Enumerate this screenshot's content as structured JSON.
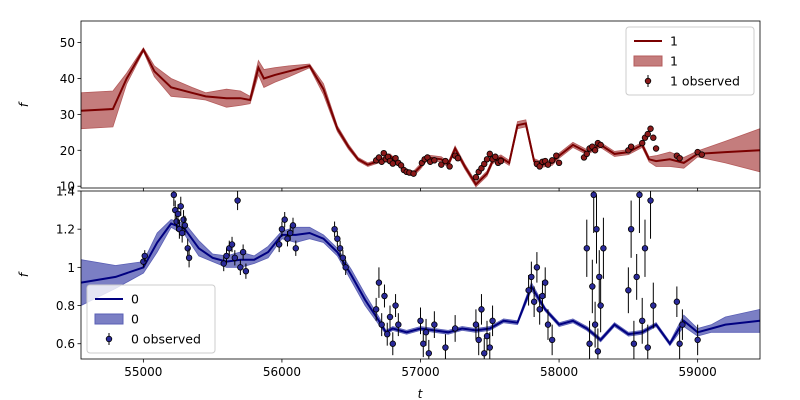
{
  "chart_data": [
    {
      "type": "line",
      "xlabel": "",
      "ylabel": "f",
      "xlim": [
        54550,
        59450
      ],
      "ylim": [
        9.5,
        56
      ],
      "yticks": [
        10,
        20,
        30,
        40,
        50
      ],
      "xticks": [
        55000,
        56000,
        57000,
        58000,
        59000
      ],
      "show_xticklabels": false,
      "colors": {
        "line": "#7a0000",
        "band": "#b55c5c",
        "point": "#8b1a1a"
      },
      "legend": {
        "position": "top-right",
        "entries": [
          {
            "kind": "line",
            "label": "1"
          },
          {
            "kind": "band",
            "label": "1"
          },
          {
            "kind": "errorbar",
            "label": "1 observed"
          }
        ]
      },
      "model": {
        "x": [
          54550,
          54780,
          54880,
          55000,
          55080,
          55200,
          55350,
          55450,
          55600,
          55700,
          55770,
          55830,
          55870,
          55950,
          56050,
          56200,
          56300,
          56400,
          56480,
          56550,
          56620,
          56700,
          56780,
          56850,
          56900,
          56950,
          57000,
          57050,
          57150,
          57200,
          57250,
          57320,
          57400,
          57480,
          57520,
          57580,
          57640,
          57700,
          57760,
          57820,
          57880,
          57950,
          58000,
          58100,
          58200,
          58300,
          58400,
          58500,
          58600,
          58650,
          58700,
          58800,
          58900,
          59000,
          59200,
          59450
        ],
        "y": [
          31.0,
          31.5,
          40.0,
          48.0,
          42.0,
          37.5,
          36.0,
          35.0,
          34.5,
          34.5,
          34.0,
          43.0,
          40.0,
          41.0,
          42.0,
          43.5,
          37.0,
          26.0,
          21.0,
          17.5,
          16.0,
          17.0,
          18.5,
          16.0,
          14.0,
          13.5,
          15.5,
          18.0,
          17.5,
          16.0,
          20.5,
          15.5,
          10.5,
          13.5,
          17.0,
          18.0,
          16.5,
          27.0,
          27.5,
          17.0,
          16.0,
          16.5,
          18.5,
          21.5,
          19.5,
          21.5,
          19.0,
          19.5,
          21.5,
          17.5,
          17.0,
          17.5,
          16.5,
          19.0,
          19.5,
          20.0
        ],
        "err": [
          5.0,
          5.0,
          1.5,
          0.5,
          1.5,
          2.5,
          1.5,
          1.0,
          2.5,
          2.0,
          1.0,
          2.0,
          2.5,
          2.0,
          1.5,
          0.5,
          1.5,
          0.8,
          0.7,
          0.5,
          0.5,
          0.5,
          0.5,
          0.5,
          0.7,
          0.7,
          0.7,
          0.7,
          0.7,
          0.7,
          0.7,
          0.7,
          0.7,
          0.7,
          0.7,
          0.7,
          0.7,
          1.0,
          1.0,
          0.7,
          0.7,
          0.7,
          0.7,
          0.7,
          0.7,
          0.7,
          0.7,
          0.7,
          0.7,
          0.7,
          1.5,
          2.0,
          1.5,
          0.8,
          3.0,
          6.0
        ]
      },
      "observed": [
        {
          "t": 56680,
          "f": 17.2,
          "e": 0.5
        },
        {
          "t": 56700,
          "f": 18.0,
          "e": 0.5
        },
        {
          "t": 56720,
          "f": 16.8,
          "e": 0.5
        },
        {
          "t": 56735,
          "f": 19.2,
          "e": 0.5
        },
        {
          "t": 56750,
          "f": 17.5,
          "e": 0.5
        },
        {
          "t": 56765,
          "f": 18.2,
          "e": 0.5
        },
        {
          "t": 56780,
          "f": 17.0,
          "e": 0.5
        },
        {
          "t": 56800,
          "f": 16.3,
          "e": 0.5
        },
        {
          "t": 56820,
          "f": 17.8,
          "e": 0.5
        },
        {
          "t": 56840,
          "f": 16.5,
          "e": 0.5
        },
        {
          "t": 56860,
          "f": 15.8,
          "e": 0.5
        },
        {
          "t": 56880,
          "f": 14.5,
          "e": 0.5
        },
        {
          "t": 56900,
          "f": 14.0,
          "e": 0.5
        },
        {
          "t": 56920,
          "f": 13.8,
          "e": 0.5
        },
        {
          "t": 56950,
          "f": 13.5,
          "e": 0.5
        },
        {
          "t": 57010,
          "f": 16.5,
          "e": 0.5
        },
        {
          "t": 57030,
          "f": 17.5,
          "e": 0.5
        },
        {
          "t": 57050,
          "f": 18.0,
          "e": 0.5
        },
        {
          "t": 57070,
          "f": 16.8,
          "e": 0.5
        },
        {
          "t": 57100,
          "f": 17.2,
          "e": 0.5
        },
        {
          "t": 57150,
          "f": 16.0,
          "e": 0.5
        },
        {
          "t": 57180,
          "f": 17.0,
          "e": 0.5
        },
        {
          "t": 57210,
          "f": 15.5,
          "e": 0.5
        },
        {
          "t": 57250,
          "f": 18.5,
          "e": 0.5
        },
        {
          "t": 57270,
          "f": 17.8,
          "e": 0.5
        },
        {
          "t": 57400,
          "f": 12.5,
          "e": 0.5
        },
        {
          "t": 57420,
          "f": 14.0,
          "e": 0.5
        },
        {
          "t": 57440,
          "f": 15.0,
          "e": 0.5
        },
        {
          "t": 57460,
          "f": 16.2,
          "e": 0.5
        },
        {
          "t": 57480,
          "f": 17.5,
          "e": 0.5
        },
        {
          "t": 57500,
          "f": 19.0,
          "e": 0.5
        },
        {
          "t": 57520,
          "f": 17.5,
          "e": 0.5
        },
        {
          "t": 57540,
          "f": 18.2,
          "e": 0.5
        },
        {
          "t": 57560,
          "f": 16.5,
          "e": 0.5
        },
        {
          "t": 57580,
          "f": 17.0,
          "e": 0.5
        },
        {
          "t": 57840,
          "f": 16.2,
          "e": 0.5
        },
        {
          "t": 57860,
          "f": 15.5,
          "e": 0.5
        },
        {
          "t": 57880,
          "f": 16.8,
          "e": 0.5
        },
        {
          "t": 57900,
          "f": 17.0,
          "e": 0.5
        },
        {
          "t": 57920,
          "f": 16.0,
          "e": 0.5
        },
        {
          "t": 57950,
          "f": 17.2,
          "e": 0.5
        },
        {
          "t": 57980,
          "f": 18.5,
          "e": 0.5
        },
        {
          "t": 58000,
          "f": 16.5,
          "e": 0.5
        },
        {
          "t": 58180,
          "f": 18.0,
          "e": 0.5
        },
        {
          "t": 58200,
          "f": 19.0,
          "e": 0.5
        },
        {
          "t": 58220,
          "f": 20.5,
          "e": 0.5
        },
        {
          "t": 58240,
          "f": 21.0,
          "e": 0.5
        },
        {
          "t": 58260,
          "f": 20.0,
          "e": 0.5
        },
        {
          "t": 58280,
          "f": 22.0,
          "e": 0.5
        },
        {
          "t": 58300,
          "f": 21.5,
          "e": 0.5
        },
        {
          "t": 58500,
          "f": 20.0,
          "e": 0.5
        },
        {
          "t": 58520,
          "f": 21.0,
          "e": 0.5
        },
        {
          "t": 58600,
          "f": 22.0,
          "e": 0.5
        },
        {
          "t": 58620,
          "f": 23.5,
          "e": 0.5
        },
        {
          "t": 58640,
          "f": 24.5,
          "e": 0.5
        },
        {
          "t": 58660,
          "f": 26.0,
          "e": 0.8
        },
        {
          "t": 58680,
          "f": 23.5,
          "e": 0.5
        },
        {
          "t": 58700,
          "f": 20.5,
          "e": 0.5
        },
        {
          "t": 58850,
          "f": 18.5,
          "e": 0.5
        },
        {
          "t": 58870,
          "f": 17.8,
          "e": 0.5
        },
        {
          "t": 59000,
          "f": 19.5,
          "e": 0.5
        },
        {
          "t": 59030,
          "f": 18.8,
          "e": 0.5
        }
      ]
    },
    {
      "type": "line",
      "xlabel": "t",
      "ylabel": "f",
      "xlim": [
        54550,
        59450
      ],
      "ylim": [
        0.52,
        1.4
      ],
      "yticks": [
        0.6,
        0.8,
        1.0,
        1.2,
        1.4
      ],
      "xticks": [
        55000,
        56000,
        57000,
        58000,
        59000
      ],
      "xticklabels": [
        "55000",
        "56000",
        "57000",
        "58000",
        "59000"
      ],
      "show_xticklabels": true,
      "colors": {
        "line": "#000080",
        "band": "#5a5fb5",
        "point": "#2a2a9a"
      },
      "legend": {
        "position": "bottom-left",
        "entries": [
          {
            "kind": "line",
            "label": "0"
          },
          {
            "kind": "band",
            "label": "0"
          },
          {
            "kind": "errorbar",
            "label": "0 observed"
          }
        ]
      },
      "model": {
        "x": [
          54550,
          54800,
          55000,
          55100,
          55200,
          55300,
          55400,
          55500,
          55600,
          55700,
          55800,
          55900,
          56000,
          56100,
          56200,
          56300,
          56400,
          56500,
          56600,
          56700,
          56750,
          56800,
          56900,
          57000,
          57100,
          57200,
          57300,
          57400,
          57500,
          57600,
          57700,
          57800,
          57900,
          58000,
          58100,
          58200,
          58300,
          58400,
          58500,
          58600,
          58700,
          58800,
          58900,
          59000,
          59100,
          59200,
          59450
        ],
        "y": [
          0.92,
          0.95,
          1.0,
          1.13,
          1.23,
          1.2,
          1.1,
          1.05,
          1.03,
          1.04,
          1.04,
          1.08,
          1.17,
          1.17,
          1.18,
          1.15,
          1.08,
          0.96,
          0.83,
          0.72,
          0.66,
          0.68,
          0.66,
          0.68,
          0.67,
          0.66,
          0.68,
          0.67,
          0.68,
          0.72,
          0.71,
          0.9,
          0.78,
          0.7,
          0.72,
          0.68,
          0.62,
          0.7,
          0.65,
          0.66,
          0.7,
          0.6,
          0.72,
          0.66,
          0.68,
          0.7,
          0.72
        ],
        "err": [
          0.12,
          0.06,
          0.03,
          0.05,
          0.02,
          0.03,
          0.04,
          0.02,
          0.03,
          0.04,
          0.02,
          0.03,
          0.02,
          0.04,
          0.03,
          0.02,
          0.02,
          0.03,
          0.03,
          0.02,
          0.01,
          0.01,
          0.01,
          0.01,
          0.01,
          0.01,
          0.01,
          0.01,
          0.01,
          0.01,
          0.01,
          0.02,
          0.01,
          0.01,
          0.01,
          0.01,
          0.01,
          0.01,
          0.01,
          0.01,
          0.01,
          0.01,
          0.03,
          0.02,
          0.02,
          0.04,
          0.06
        ]
      },
      "observed": [
        {
          "t": 55000,
          "f": 1.03,
          "e": 0.03
        },
        {
          "t": 55010,
          "f": 1.06,
          "e": 0.03
        },
        {
          "t": 55220,
          "f": 1.38,
          "e": 0.06
        },
        {
          "t": 55230,
          "f": 1.3,
          "e": 0.05
        },
        {
          "t": 55240,
          "f": 1.24,
          "e": 0.05
        },
        {
          "t": 55250,
          "f": 1.28,
          "e": 0.05
        },
        {
          "t": 55260,
          "f": 1.2,
          "e": 0.05
        },
        {
          "t": 55270,
          "f": 1.32,
          "e": 0.05
        },
        {
          "t": 55280,
          "f": 1.18,
          "e": 0.05
        },
        {
          "t": 55290,
          "f": 1.25,
          "e": 0.05
        },
        {
          "t": 55300,
          "f": 1.22,
          "e": 0.05
        },
        {
          "t": 55320,
          "f": 1.1,
          "e": 0.05
        },
        {
          "t": 55330,
          "f": 1.05,
          "e": 0.05
        },
        {
          "t": 55580,
          "f": 1.02,
          "e": 0.04
        },
        {
          "t": 55600,
          "f": 1.06,
          "e": 0.04
        },
        {
          "t": 55620,
          "f": 1.1,
          "e": 0.04
        },
        {
          "t": 55640,
          "f": 1.12,
          "e": 0.04
        },
        {
          "t": 55660,
          "f": 1.05,
          "e": 0.04
        },
        {
          "t": 55680,
          "f": 1.35,
          "e": 0.05
        },
        {
          "t": 55700,
          "f": 1.0,
          "e": 0.04
        },
        {
          "t": 55720,
          "f": 1.08,
          "e": 0.04
        },
        {
          "t": 55740,
          "f": 0.98,
          "e": 0.04
        },
        {
          "t": 55980,
          "f": 1.12,
          "e": 0.04
        },
        {
          "t": 56000,
          "f": 1.2,
          "e": 0.04
        },
        {
          "t": 56020,
          "f": 1.25,
          "e": 0.04
        },
        {
          "t": 56040,
          "f": 1.15,
          "e": 0.04
        },
        {
          "t": 56060,
          "f": 1.18,
          "e": 0.04
        },
        {
          "t": 56080,
          "f": 1.22,
          "e": 0.04
        },
        {
          "t": 56100,
          "f": 1.1,
          "e": 0.04
        },
        {
          "t": 56380,
          "f": 1.2,
          "e": 0.04
        },
        {
          "t": 56400,
          "f": 1.15,
          "e": 0.04
        },
        {
          "t": 56420,
          "f": 1.1,
          "e": 0.04
        },
        {
          "t": 56440,
          "f": 1.05,
          "e": 0.04
        },
        {
          "t": 56460,
          "f": 1.0,
          "e": 0.04
        },
        {
          "t": 56680,
          "f": 0.78,
          "e": 0.06
        },
        {
          "t": 56700,
          "f": 0.92,
          "e": 0.08
        },
        {
          "t": 56720,
          "f": 0.7,
          "e": 0.06
        },
        {
          "t": 56740,
          "f": 0.85,
          "e": 0.06
        },
        {
          "t": 56760,
          "f": 0.65,
          "e": 0.06
        },
        {
          "t": 56780,
          "f": 0.74,
          "e": 0.06
        },
        {
          "t": 56800,
          "f": 0.6,
          "e": 0.06
        },
        {
          "t": 56820,
          "f": 0.8,
          "e": 0.06
        },
        {
          "t": 56840,
          "f": 0.7,
          "e": 0.06
        },
        {
          "t": 57000,
          "f": 0.72,
          "e": 0.07
        },
        {
          "t": 57020,
          "f": 0.6,
          "e": 0.07
        },
        {
          "t": 57040,
          "f": 0.66,
          "e": 0.07
        },
        {
          "t": 57060,
          "f": 0.55,
          "e": 0.07
        },
        {
          "t": 57100,
          "f": 0.7,
          "e": 0.07
        },
        {
          "t": 57180,
          "f": 0.58,
          "e": 0.07
        },
        {
          "t": 57250,
          "f": 0.68,
          "e": 0.07
        },
        {
          "t": 57400,
          "f": 0.7,
          "e": 0.08
        },
        {
          "t": 57420,
          "f": 0.62,
          "e": 0.08
        },
        {
          "t": 57440,
          "f": 0.78,
          "e": 0.08
        },
        {
          "t": 57460,
          "f": 0.55,
          "e": 0.08
        },
        {
          "t": 57480,
          "f": 0.64,
          "e": 0.08
        },
        {
          "t": 57500,
          "f": 0.58,
          "e": 0.08
        },
        {
          "t": 57520,
          "f": 0.72,
          "e": 0.08
        },
        {
          "t": 57780,
          "f": 0.88,
          "e": 0.08
        },
        {
          "t": 57800,
          "f": 0.95,
          "e": 0.08
        },
        {
          "t": 57820,
          "f": 0.82,
          "e": 0.08
        },
        {
          "t": 57840,
          "f": 1.0,
          "e": 0.08
        },
        {
          "t": 57860,
          "f": 0.78,
          "e": 0.08
        },
        {
          "t": 57880,
          "f": 0.85,
          "e": 0.08
        },
        {
          "t": 57900,
          "f": 0.92,
          "e": 0.08
        },
        {
          "t": 57920,
          "f": 0.7,
          "e": 0.08
        },
        {
          "t": 57950,
          "f": 0.62,
          "e": 0.08
        },
        {
          "t": 58200,
          "f": 1.1,
          "e": 0.15
        },
        {
          "t": 58220,
          "f": 0.6,
          "e": 0.12
        },
        {
          "t": 58240,
          "f": 0.9,
          "e": 0.14
        },
        {
          "t": 58250,
          "f": 1.38,
          "e": 0.2
        },
        {
          "t": 58260,
          "f": 0.7,
          "e": 0.12
        },
        {
          "t": 58270,
          "f": 1.2,
          "e": 0.18
        },
        {
          "t": 58280,
          "f": 0.56,
          "e": 0.12
        },
        {
          "t": 58290,
          "f": 0.95,
          "e": 0.14
        },
        {
          "t": 58300,
          "f": 0.8,
          "e": 0.14
        },
        {
          "t": 58320,
          "f": 1.1,
          "e": 0.16
        },
        {
          "t": 58500,
          "f": 0.88,
          "e": 0.12
        },
        {
          "t": 58520,
          "f": 1.2,
          "e": 0.15
        },
        {
          "t": 58540,
          "f": 0.6,
          "e": 0.12
        },
        {
          "t": 58560,
          "f": 0.95,
          "e": 0.12
        },
        {
          "t": 58580,
          "f": 1.38,
          "e": 0.2
        },
        {
          "t": 58600,
          "f": 0.72,
          "e": 0.12
        },
        {
          "t": 58620,
          "f": 1.1,
          "e": 0.15
        },
        {
          "t": 58640,
          "f": 0.58,
          "e": 0.12
        },
        {
          "t": 58660,
          "f": 1.35,
          "e": 0.2
        },
        {
          "t": 58680,
          "f": 0.8,
          "e": 0.12
        },
        {
          "t": 58850,
          "f": 0.82,
          "e": 0.08
        },
        {
          "t": 58870,
          "f": 0.6,
          "e": 0.08
        },
        {
          "t": 58890,
          "f": 0.7,
          "e": 0.08
        },
        {
          "t": 59000,
          "f": 0.62,
          "e": 0.08
        }
      ]
    }
  ]
}
